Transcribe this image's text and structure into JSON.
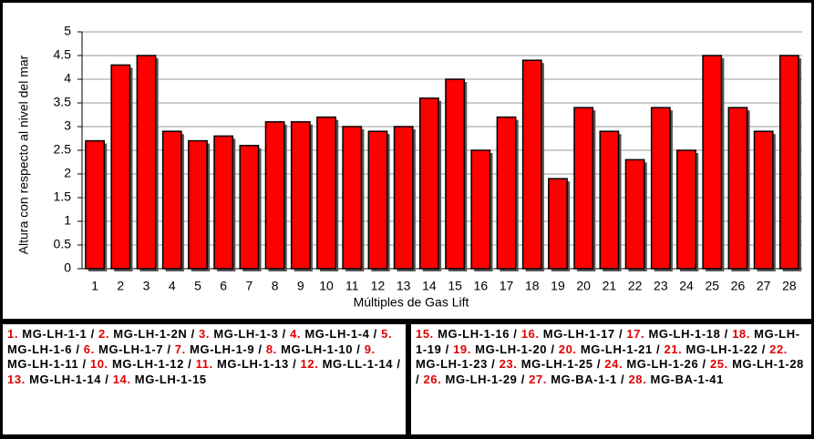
{
  "chart_data": {
    "type": "bar",
    "x_label": "Múltiples de Gas Lift",
    "y_label": "Altura con respecto al nivel del mar",
    "categories": [
      "1",
      "2",
      "3",
      "4",
      "5",
      "6",
      "7",
      "8",
      "9",
      "10",
      "11",
      "12",
      "13",
      "14",
      "15",
      "16",
      "17",
      "18",
      "19",
      "20",
      "21",
      "22",
      "23",
      "24",
      "25",
      "26",
      "27",
      "28"
    ],
    "values": [
      2.7,
      4.3,
      4.5,
      2.9,
      2.7,
      2.8,
      2.6,
      3.1,
      3.1,
      3.2,
      3.0,
      2.9,
      3.0,
      3.6,
      4.0,
      2.5,
      3.2,
      4.4,
      1.9,
      3.4,
      2.9,
      2.3,
      3.4,
      2.5,
      4.5,
      3.4,
      2.9,
      4.5
    ],
    "color": "#ff0000",
    "ylim": [
      0,
      5
    ],
    "yticks": [
      0,
      0.5,
      1,
      1.5,
      2,
      2.5,
      3,
      3.5,
      4,
      4.5,
      5
    ],
    "grid": true
  },
  "legend": {
    "left": [
      {
        "number": "1.",
        "name": "MG-LH-1-1"
      },
      {
        "number": "2.",
        "name": "MG-LH-1-2N"
      },
      {
        "number": "3.",
        "name": "MG-LH-1-3"
      },
      {
        "number": "4.",
        "name": "MG-LH-1-4"
      },
      {
        "number": "5.",
        "name": "MG-LH-1-6"
      },
      {
        "number": "6.",
        "name": "MG-LH-1-7"
      },
      {
        "number": "7.",
        "name": "MG-LH-1-9"
      },
      {
        "number": "8.",
        "name": "MG-LH-1-10"
      },
      {
        "number": "9.",
        "name": "MG-LH-1-11"
      },
      {
        "number": "10.",
        "name": "MG-LH-1-12"
      },
      {
        "number": "11.",
        "name": "MG-LH-1-13"
      },
      {
        "number": "12.",
        "name": "MG-LL-1-14"
      },
      {
        "number": "13.",
        "name": "MG-LH-1-14"
      },
      {
        "number": "14.",
        "name": "MG-LH-1-15"
      }
    ],
    "right": [
      {
        "number": "15.",
        "name": "MG-LH-1-16"
      },
      {
        "number": "16.",
        "name": "MG-LH-1-17"
      },
      {
        "number": "17.",
        "name": "MG-LH-1-18"
      },
      {
        "number": "18.",
        "name": "MG-LH-1-19"
      },
      {
        "number": "19.",
        "name": "MG-LH-1-20"
      },
      {
        "number": "20.",
        "name": "MG-LH-1-21"
      },
      {
        "number": "21.",
        "name": "MG-LH-1-22"
      },
      {
        "number": "22.",
        "name": "MG-LH-1-23"
      },
      {
        "number": "23.",
        "name": "MG-LH-1-25"
      },
      {
        "number": "24.",
        "name": "MG-LH-1-26"
      },
      {
        "number": "25.",
        "name": "MG-LH-1-28"
      },
      {
        "number": "26.",
        "name": "MG-LH-1-29"
      },
      {
        "number": "27.",
        "name": "MG-BA-1-1"
      },
      {
        "number": "28.",
        "name": "MG-BA-1-41"
      }
    ]
  }
}
